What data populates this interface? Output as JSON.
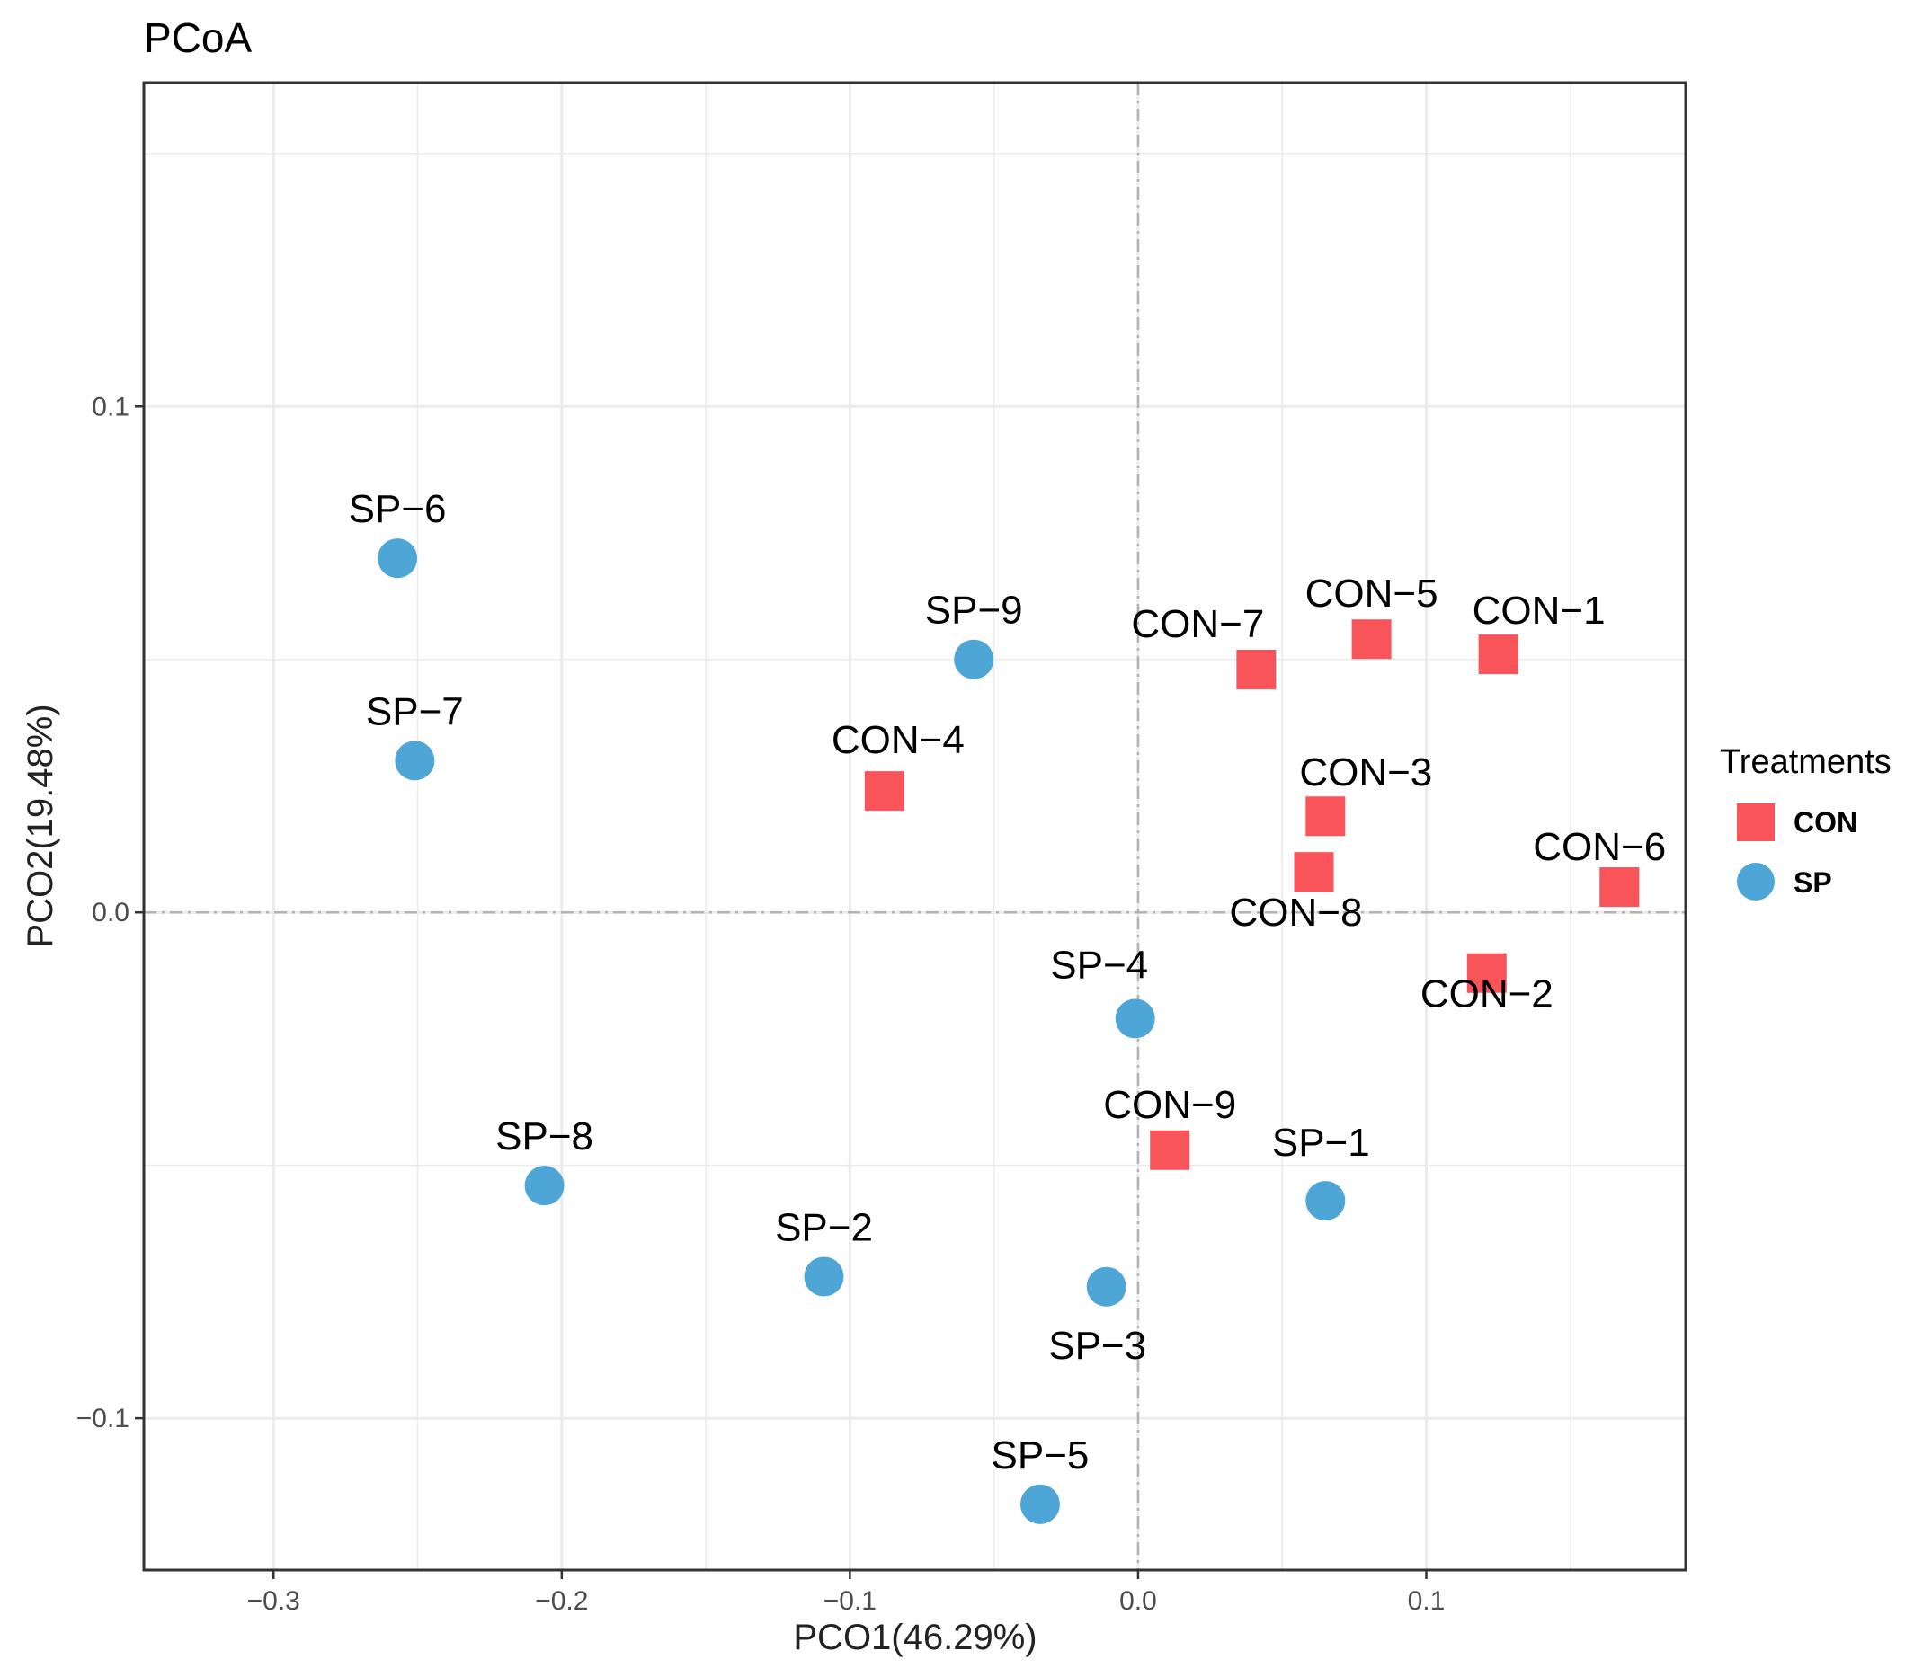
{
  "chart_data": {
    "type": "scatter",
    "title": "PCoA",
    "xlabel": "PCO1(46.29%)",
    "ylabel": "PCO2(19.48%)",
    "xlim": [
      -0.345,
      0.19
    ],
    "ylim": [
      -0.13,
      0.164
    ],
    "x_ticks": [
      -0.3,
      -0.2,
      -0.1,
      0.0,
      0.1
    ],
    "x_tick_labels": [
      "−0.3",
      "−0.2",
      "−0.1",
      "0.0",
      "0.1"
    ],
    "y_ticks": [
      -0.1,
      0.0,
      0.1
    ],
    "y_tick_labels": [
      "−0.1",
      "0.0",
      "0.1"
    ],
    "grid": true,
    "reference_lines": {
      "x": 0,
      "y": 0
    },
    "legend": {
      "title": "Treatments",
      "position": "right"
    },
    "series": [
      {
        "name": "CON",
        "color": "#F8545A",
        "marker": "square",
        "points": [
          {
            "label": "CON−1",
            "x": 0.125,
            "y": 0.051
          },
          {
            "label": "CON−2",
            "x": 0.121,
            "y": -0.012
          },
          {
            "label": "CON−3",
            "x": 0.065,
            "y": 0.019
          },
          {
            "label": "CON−4",
            "x": -0.088,
            "y": 0.024
          },
          {
            "label": "CON−5",
            "x": 0.081,
            "y": 0.054
          },
          {
            "label": "CON−6",
            "x": 0.167,
            "y": 0.005
          },
          {
            "label": "CON−7",
            "x": 0.041,
            "y": 0.048
          },
          {
            "label": "CON−8",
            "x": 0.061,
            "y": 0.008
          },
          {
            "label": "CON−9",
            "x": 0.011,
            "y": -0.047
          }
        ]
      },
      {
        "name": "SP",
        "color": "#4DA6D6",
        "marker": "circle",
        "points": [
          {
            "label": "SP−1",
            "x": 0.065,
            "y": -0.057
          },
          {
            "label": "SP−2",
            "x": -0.109,
            "y": -0.072
          },
          {
            "label": "SP−3",
            "x": -0.011,
            "y": -0.074
          },
          {
            "label": "SP−4",
            "x": -0.001,
            "y": -0.021
          },
          {
            "label": "SP−5",
            "x": -0.034,
            "y": -0.117
          },
          {
            "label": "SP−6",
            "x": -0.257,
            "y": 0.07
          },
          {
            "label": "SP−7",
            "x": -0.251,
            "y": 0.03
          },
          {
            "label": "SP−8",
            "x": -0.206,
            "y": -0.054
          },
          {
            "label": "SP−9",
            "x": -0.057,
            "y": 0.05
          }
        ]
      }
    ]
  }
}
